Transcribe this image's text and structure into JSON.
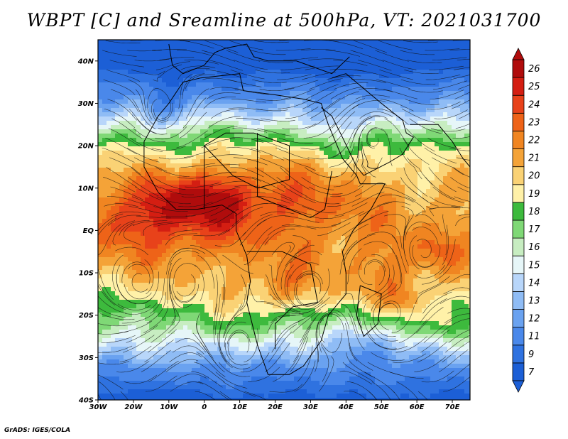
{
  "title": "WBPT [C] and Sreamline at 500hPa, VT: 2021031700",
  "credit": "GrADS: IGES/COLA",
  "map": {
    "lat_range": [
      -40,
      45
    ],
    "lon_range": [
      -30,
      75
    ],
    "lat_ticks": [
      "40N",
      "30N",
      "20N",
      "10N",
      "EQ",
      "10S",
      "20S",
      "30S",
      "40S"
    ],
    "lon_ticks": [
      "30W",
      "20W",
      "10W",
      "0",
      "10E",
      "20E",
      "30E",
      "40E",
      "50E",
      "60E",
      "70E"
    ]
  },
  "colorbar": {
    "labels": [
      "7",
      "9",
      "11",
      "12",
      "13",
      "14",
      "15",
      "16",
      "17",
      "18",
      "19",
      "20",
      "21",
      "22",
      "23",
      "24",
      "25",
      "26"
    ],
    "colors": [
      "#1c5fd6",
      "#2f72e0",
      "#4a88ea",
      "#6aa2f0",
      "#8fbcf5",
      "#b8d6fa",
      "#e6f6f8",
      "#c7edc1",
      "#7fd876",
      "#3dba3d",
      "#fff1a8",
      "#fad275",
      "#f4a338",
      "#f08521",
      "#ee6318",
      "#e8421a",
      "#d41e12",
      "#b00c0c"
    ]
  },
  "chart_data": {
    "type": "heatmap",
    "title": "WBPT [C] and Sreamline at 500hPa, VT: 2021031700",
    "x": [
      "30W",
      "20W",
      "10W",
      "0",
      "10E",
      "20E",
      "30E",
      "40E",
      "50E",
      "60E",
      "70E"
    ],
    "y": [
      "40N",
      "30N",
      "20N",
      "10N",
      "EQ",
      "10S",
      "20S",
      "30S",
      "40S"
    ],
    "xlim": [
      -30,
      75
    ],
    "ylim": [
      -40,
      45
    ],
    "colorbar_levels": [
      7,
      9,
      11,
      12,
      13,
      14,
      15,
      16,
      17,
      18,
      19,
      20,
      21,
      22,
      23,
      24,
      25,
      26
    ],
    "xlabel": "",
    "ylabel": ""
  }
}
